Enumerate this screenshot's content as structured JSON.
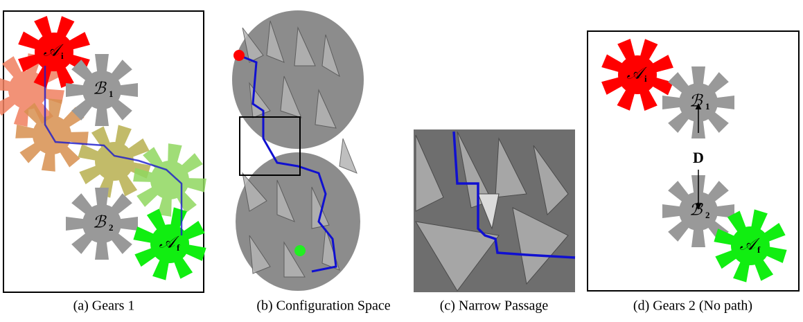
{
  "panels": [
    {
      "caption": "(a) Gears 1",
      "gears": [
        {
          "symbol": "𝒜",
          "subscript": "i"
        },
        {
          "symbol": "ℬ",
          "subscript": "1"
        },
        {
          "symbol": "ℬ",
          "subscript": "2"
        },
        {
          "symbol": "𝒜",
          "subscript": "f"
        }
      ]
    },
    {
      "caption": "(b) Configuration Space"
    },
    {
      "caption": "(c) Narrow Passage"
    },
    {
      "caption": "(d) Gears 2 (No path)",
      "gears": [
        {
          "symbol": "𝒜",
          "subscript": "i"
        },
        {
          "symbol": "ℬ",
          "subscript": "1"
        },
        {
          "symbol": "ℬ",
          "subscript": "2"
        },
        {
          "symbol": "𝒜",
          "subscript": "f"
        }
      ],
      "distance_label": "D"
    }
  ]
}
